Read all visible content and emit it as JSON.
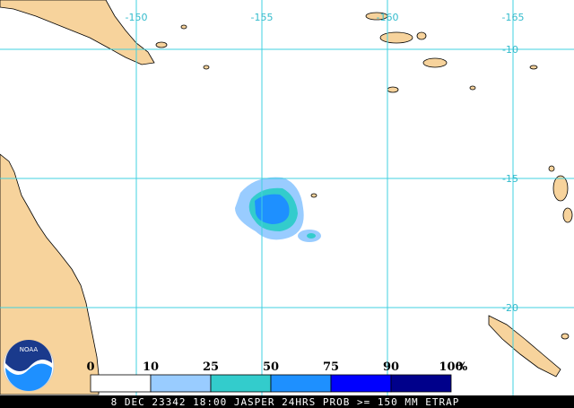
{
  "map": {
    "longitude_labels": [
      -150,
      -155,
      -160,
      -165
    ],
    "latitude_labels": [
      -10,
      -15,
      -20
    ]
  },
  "legend": {
    "ticks": [
      0,
      10,
      25,
      50,
      75,
      90,
      100
    ],
    "unit": "%",
    "colors": [
      "#ffffff",
      "#99ccff",
      "#33cccc",
      "#1e90ff",
      "#0000ff",
      "#00008b"
    ]
  },
  "logo": "NOAA",
  "caption": "8 DEC 23342 18:00 JASPER 24HRS PROB >= 150 MM ETRAP"
}
